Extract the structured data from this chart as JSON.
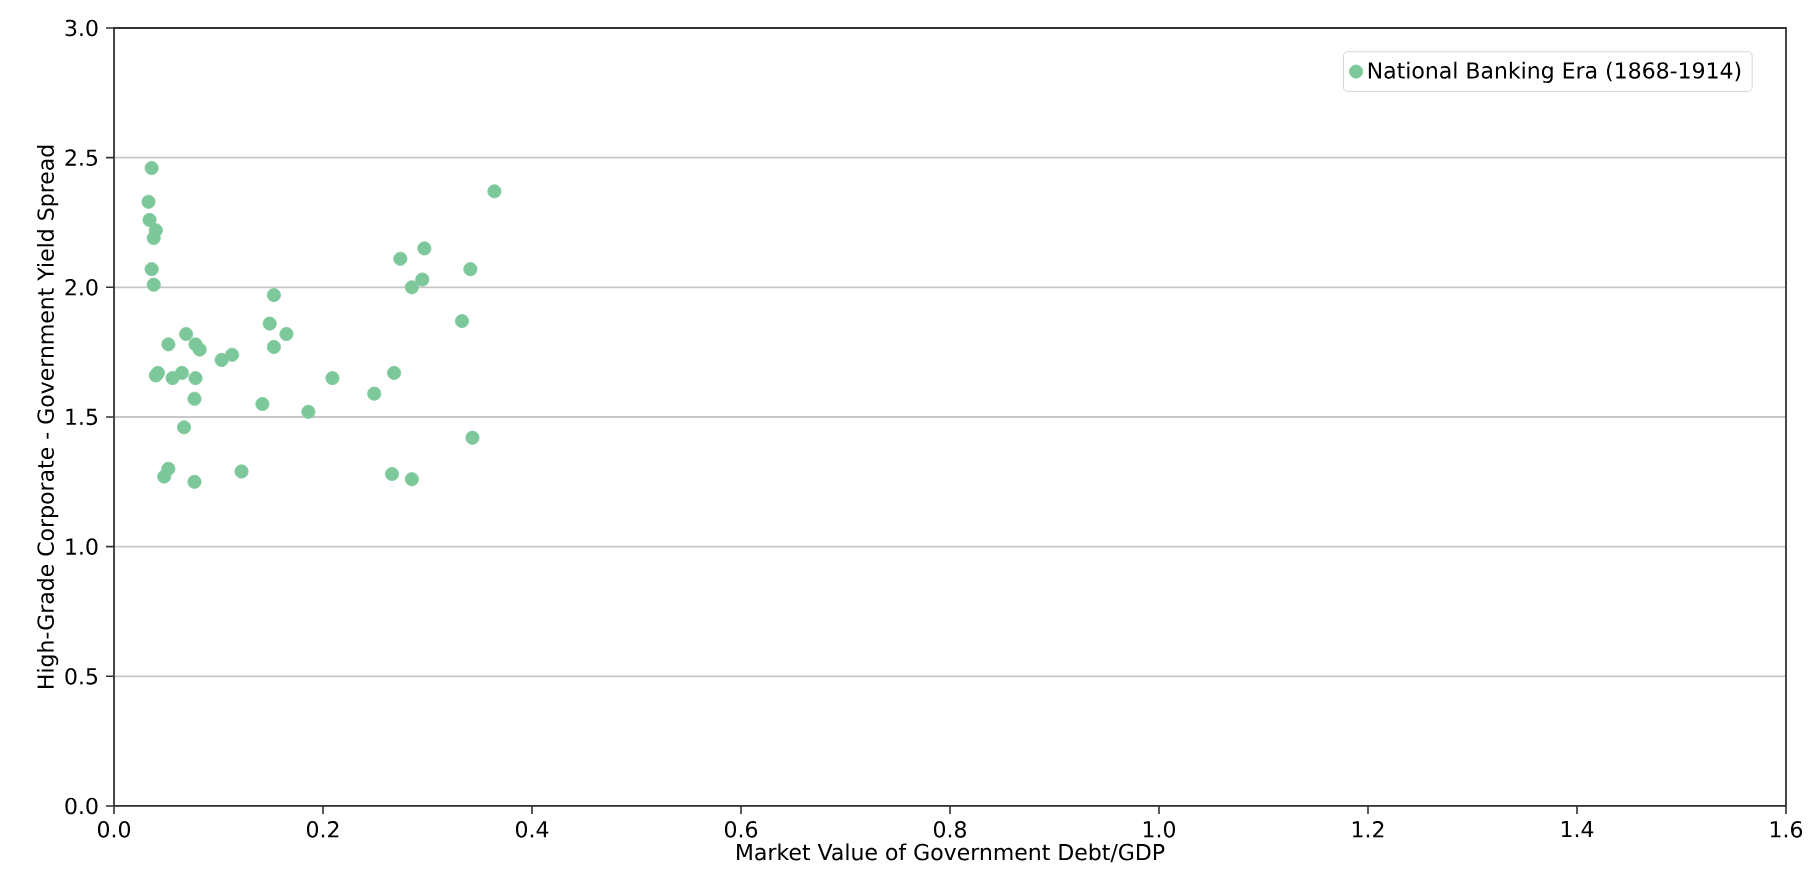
{
  "chart_data": {
    "type": "scatter",
    "xlabel": "Market Value of Government Debt/GDP",
    "ylabel": "High-Grade Corporate - Government Yield Spread",
    "series": [
      {
        "name": "National Banking Era (1868-1914)",
        "color": "#7dc89a",
        "x": [
          0.036,
          0.033,
          0.034,
          0.038,
          0.04,
          0.036,
          0.038,
          0.042,
          0.04,
          0.052,
          0.056,
          0.065,
          0.069,
          0.078,
          0.082,
          0.078,
          0.077,
          0.067,
          0.103,
          0.113,
          0.048,
          0.052,
          0.077,
          0.122,
          0.142,
          0.153,
          0.149,
          0.153,
          0.165,
          0.186,
          0.209,
          0.249,
          0.268,
          0.266,
          0.274,
          0.285,
          0.285,
          0.295,
          0.297,
          0.333,
          0.341,
          0.343,
          0.364
        ],
        "values": [
          2.46,
          2.33,
          2.26,
          2.19,
          2.22,
          2.07,
          2.01,
          1.67,
          1.66,
          1.78,
          1.65,
          1.67,
          1.82,
          1.78,
          1.76,
          1.65,
          1.57,
          1.46,
          1.72,
          1.74,
          1.27,
          1.3,
          1.25,
          1.29,
          1.55,
          1.97,
          1.86,
          1.77,
          1.82,
          1.52,
          1.65,
          1.59,
          1.67,
          1.28,
          2.11,
          2.0,
          1.26,
          2.03,
          2.15,
          1.87,
          2.07,
          1.42,
          2.37
        ]
      }
    ],
    "xlim": [
      0,
      1.6
    ],
    "ylim": [
      0,
      3
    ],
    "xticks": [
      {
        "value": 0,
        "label": "0.0"
      },
      {
        "value": 0.2,
        "label": "0.2"
      },
      {
        "value": 0.4,
        "label": "0.4"
      },
      {
        "value": 0.6,
        "label": "0.6"
      },
      {
        "value": 0.8,
        "label": "0.8"
      },
      {
        "value": 1.0,
        "label": "1.0"
      },
      {
        "value": 1.2,
        "label": "1.2"
      },
      {
        "value": 1.4,
        "label": "1.4"
      },
      {
        "value": 1.6,
        "label": "1.6"
      }
    ],
    "yticks": [
      {
        "value": 0,
        "label": "0.0"
      },
      {
        "value": 0.5,
        "label": "0.5"
      },
      {
        "value": 1.0,
        "label": "1.0"
      },
      {
        "value": 1.5,
        "label": "1.5"
      },
      {
        "value": 2.0,
        "label": "2.0"
      },
      {
        "value": 2.5,
        "label": "2.5"
      },
      {
        "value": 3.0,
        "label": "3.0"
      }
    ],
    "grid": "y",
    "legend": "top right"
  }
}
